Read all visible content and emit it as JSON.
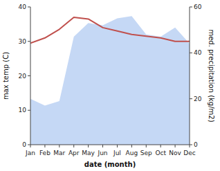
{
  "chart_data": {
    "type": "line",
    "categories": [
      "Jan",
      "Feb",
      "Mar",
      "Apr",
      "May",
      "Jun",
      "Jul",
      "Aug",
      "Sep",
      "Oct",
      "Nov",
      "Dec"
    ],
    "xlabel": "date (month)",
    "ylabel": "max temp (C)",
    "y2label": "med. precipitation (kg/m2)",
    "ylim": [
      0,
      40
    ],
    "yticks": [
      0,
      10,
      20,
      30,
      40
    ],
    "y2lim": [
      0,
      60
    ],
    "y2ticks": [
      0,
      20,
      40,
      60
    ],
    "grid": false,
    "series": [
      {
        "type": "area",
        "axis": "y2",
        "color": "#c5d8f5",
        "values": [
          20.0,
          17.0,
          19.0,
          47.0,
          53.0,
          52.0,
          55.0,
          56.0,
          48.0,
          47.0,
          51.0,
          44.0
        ]
      },
      {
        "type": "line",
        "color": "#c0504d",
        "values": [
          29.5,
          31.0,
          33.5,
          37.0,
          36.5,
          34.0,
          33.0,
          32.0,
          31.5,
          31.0,
          30.0,
          30.0
        ]
      }
    ]
  }
}
